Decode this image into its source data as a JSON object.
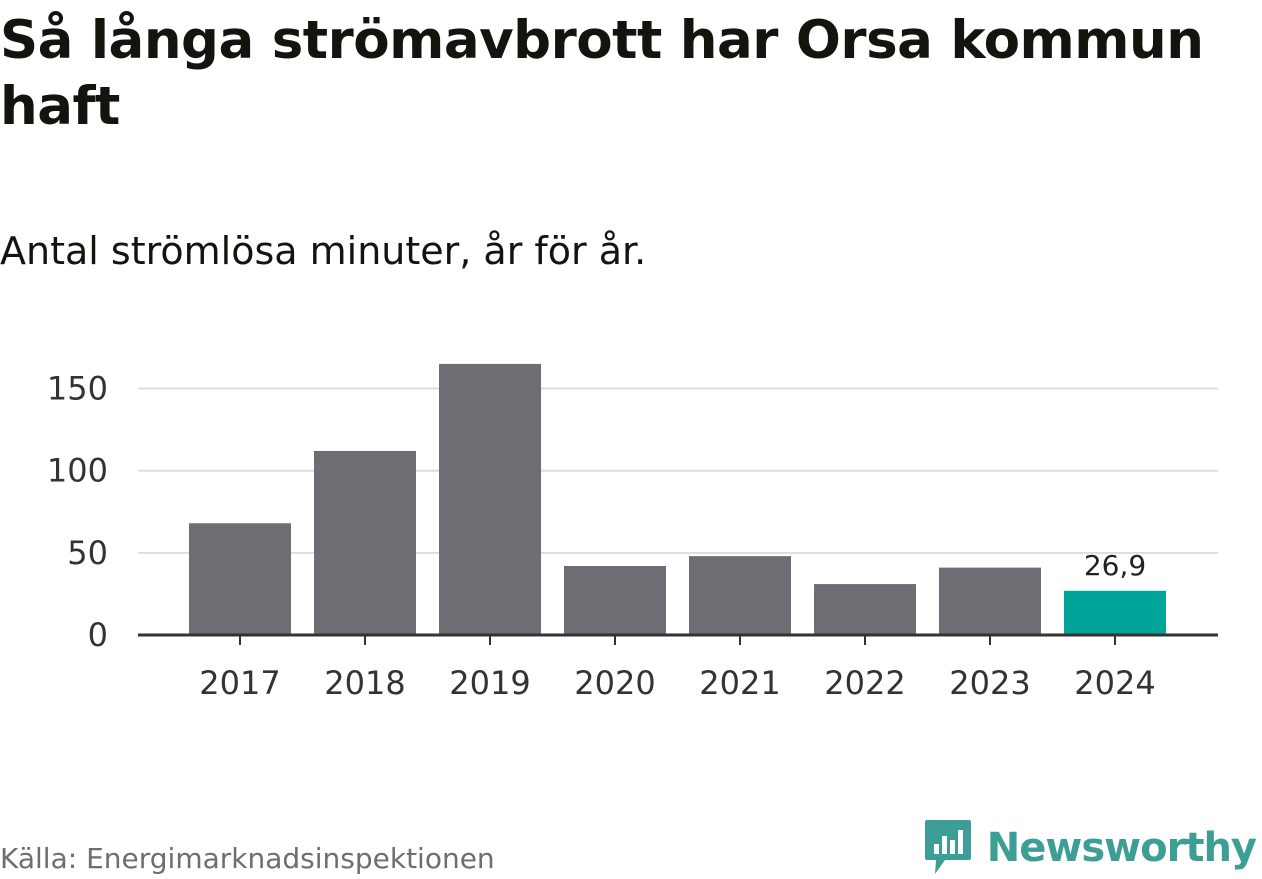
{
  "header": {
    "title": "Så långa strömavbrott har Orsa kommun haft",
    "subtitle": "Antal strömlösa minuter, år för år."
  },
  "footer": {
    "source": "Källa: Energimarknadsinspektionen",
    "brand": "Newsworthy",
    "brand_icon": "chart-bubble-icon"
  },
  "colors": {
    "bar": "#6e6d74",
    "highlight": "#00a499",
    "grid": "#dddddd",
    "axis": "#333333",
    "brand": "#3d9e96"
  },
  "chart_data": {
    "type": "bar",
    "title": "Så långa strömavbrott har Orsa kommun haft",
    "subtitle": "Antal strömlösa minuter, år för år.",
    "xlabel": "",
    "ylabel": "",
    "categories": [
      "2017",
      "2018",
      "2019",
      "2020",
      "2021",
      "2022",
      "2023",
      "2024"
    ],
    "values": [
      68,
      112,
      165,
      42,
      48,
      31,
      41,
      26.9
    ],
    "highlight_index": 7,
    "data_labels": [
      {
        "index": 7,
        "text": "26,9"
      }
    ],
    "ylim": [
      0,
      165
    ],
    "yticks": [
      0,
      50,
      100,
      150
    ],
    "ytick_labels": [
      "0",
      "50",
      "100",
      "150"
    ],
    "grid": true,
    "legend": "none"
  }
}
